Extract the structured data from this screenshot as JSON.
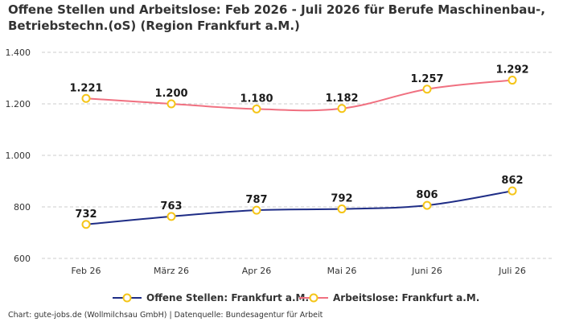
{
  "chart_data": {
    "type": "line",
    "title": "Offene Stellen und Arbeitslose: Feb 2026 - Juli 2026 für Berufe Maschinenbau-, Betriebstechn.(oS) (Region Frankfurt a.M.)",
    "categories": [
      "Feb 26",
      "März 26",
      "Apr 26",
      "Mai 26",
      "Juni 26",
      "Juli 26"
    ],
    "series": [
      {
        "name": "Offene Stellen: Frankfurt a.M.",
        "values": [
          732,
          763,
          787,
          792,
          806,
          862
        ],
        "labels": [
          "732",
          "763",
          "787",
          "792",
          "806",
          "862"
        ],
        "color": "#1f2d86"
      },
      {
        "name": "Arbeitslose: Frankfurt a.M.",
        "values": [
          1221,
          1200,
          1180,
          1182,
          1257,
          1292
        ],
        "labels": [
          "1.221",
          "1.200",
          "1.180",
          "1.182",
          "1.257",
          "1.292"
        ],
        "color": "#f07080"
      }
    ],
    "yticks": [
      600,
      800,
      1000,
      1200,
      1400
    ],
    "ytick_labels": [
      "600",
      "800",
      "1.000",
      "1.200",
      "1.400"
    ],
    "ylim": [
      600,
      1400
    ],
    "grid": true,
    "legend_position": "bottom",
    "marker_color": "#f5c518",
    "source": "Chart: gute-jobs.de (Wollmilchsau GmbH) | Datenquelle: Bundesagentur für Arbeit"
  }
}
